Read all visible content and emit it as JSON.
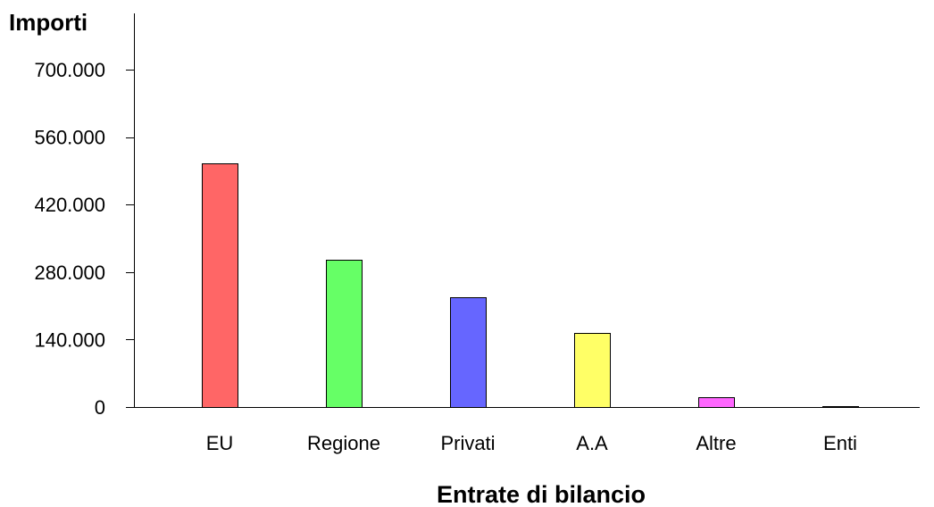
{
  "chart_data": {
    "type": "bar",
    "title": "",
    "ylabel": "Importi",
    "xlabel": "Entrate di bilancio",
    "categories": [
      "EU",
      "Regione",
      "Privati",
      "A.A",
      "Altre",
      "Enti"
    ],
    "values": [
      505000,
      305000,
      228000,
      153000,
      20000,
      1500
    ],
    "colors": [
      "#ff6666",
      "#66ff66",
      "#6666ff",
      "#ffff66",
      "#ff66ff",
      "#000000"
    ],
    "yticks": [
      0,
      140000,
      280000,
      420000,
      560000,
      700000
    ],
    "ytick_labels": [
      "0",
      "140.000",
      "280.000",
      "420.000",
      "560.000",
      "700.000"
    ],
    "ylim": [
      0,
      700000
    ],
    "grid": false,
    "legend": false
  }
}
